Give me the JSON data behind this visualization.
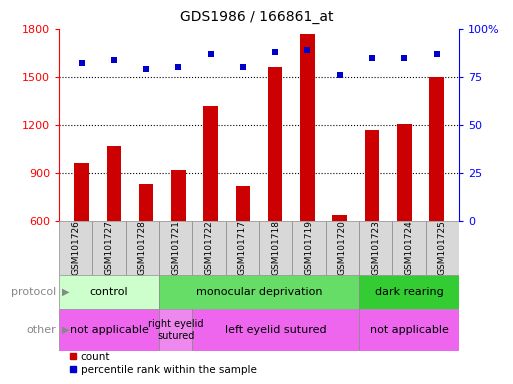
{
  "title": "GDS1986 / 166861_at",
  "samples": [
    "GSM101726",
    "GSM101727",
    "GSM101728",
    "GSM101721",
    "GSM101722",
    "GSM101717",
    "GSM101718",
    "GSM101719",
    "GSM101720",
    "GSM101723",
    "GSM101724",
    "GSM101725"
  ],
  "counts": [
    960,
    1070,
    830,
    920,
    1320,
    820,
    1560,
    1770,
    635,
    1170,
    1205,
    1500
  ],
  "percentile_ranks": [
    82,
    84,
    79,
    80,
    87,
    80,
    88,
    89,
    76,
    85,
    85,
    87
  ],
  "ylim_left": [
    600,
    1800
  ],
  "yticks_left": [
    600,
    900,
    1200,
    1500,
    1800
  ],
  "yticks_right_labels": [
    "0",
    "25",
    "50",
    "75",
    "100%"
  ],
  "bar_color": "#cc0000",
  "dot_color": "#0000cc",
  "protocol_groups": [
    {
      "label": "control",
      "start": 0,
      "end": 3,
      "color": "#ccffcc"
    },
    {
      "label": "monocular deprivation",
      "start": 3,
      "end": 9,
      "color": "#66dd66"
    },
    {
      "label": "dark rearing",
      "start": 9,
      "end": 12,
      "color": "#33cc33"
    }
  ],
  "other_groups": [
    {
      "label": "not applicable",
      "start": 0,
      "end": 3,
      "color": "#ee66ee"
    },
    {
      "label": "right eyelid\nsutured",
      "start": 3,
      "end": 4,
      "color": "#ee88ee"
    },
    {
      "label": "left eyelid sutured",
      "start": 4,
      "end": 9,
      "color": "#ee66ee"
    },
    {
      "label": "not applicable",
      "start": 9,
      "end": 12,
      "color": "#ee66ee"
    }
  ],
  "protocol_label": "protocol",
  "other_label": "other",
  "legend_count": "count",
  "legend_pct": "percentile rank within the sample",
  "bar_width": 0.45
}
